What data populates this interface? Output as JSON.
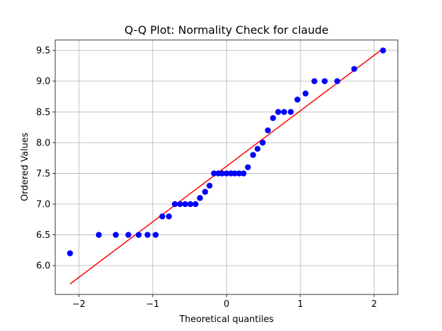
{
  "chart_data": {
    "type": "scatter",
    "title": "Q-Q Plot: Normality Check for claude",
    "xlabel": "Theoretical quantiles",
    "ylabel": "Ordered Values",
    "xlim": [
      -2.32,
      2.32
    ],
    "ylim": [
      5.53,
      9.67
    ],
    "xticks": [
      -2,
      -1,
      0,
      1,
      2
    ],
    "xtick_labels": [
      "−2",
      "−1",
      "0",
      "1",
      "2"
    ],
    "yticks": [
      6.0,
      6.5,
      7.0,
      7.5,
      8.0,
      8.5,
      9.0,
      9.5
    ],
    "ytick_labels": [
      "6.0",
      "6.5",
      "7.0",
      "7.5",
      "8.0",
      "8.5",
      "9.0",
      "9.5"
    ],
    "grid": true,
    "legend": null,
    "series": [
      {
        "kind": "points",
        "color": "#0000ff",
        "x": [
          -2.12,
          -1.73,
          -1.5,
          -1.33,
          -1.19,
          -1.07,
          -0.96,
          -0.87,
          -0.78,
          -0.7,
          -0.63,
          -0.56,
          -0.49,
          -0.42,
          -0.36,
          -0.29,
          -0.23,
          -0.17,
          -0.11,
          -0.06,
          0.0,
          0.06,
          0.11,
          0.17,
          0.23,
          0.29,
          0.36,
          0.42,
          0.49,
          0.56,
          0.63,
          0.7,
          0.78,
          0.87,
          0.96,
          1.07,
          1.19,
          1.33,
          1.5,
          1.73,
          2.12
        ],
        "y": [
          6.2,
          6.5,
          6.5,
          6.5,
          6.5,
          6.5,
          6.5,
          6.8,
          6.8,
          7.0,
          7.0,
          7.0,
          7.0,
          7.0,
          7.1,
          7.2,
          7.3,
          7.5,
          7.5,
          7.5,
          7.5,
          7.5,
          7.5,
          7.5,
          7.5,
          7.6,
          7.8,
          7.9,
          8.0,
          8.2,
          8.4,
          8.5,
          8.5,
          8.5,
          8.7,
          8.8,
          9.0,
          9.0,
          9.0,
          9.2,
          9.5
        ]
      },
      {
        "kind": "fit-line",
        "color": "#ff0000",
        "x": [
          -2.12,
          2.12
        ],
        "y": [
          5.7,
          9.53
        ]
      }
    ]
  }
}
